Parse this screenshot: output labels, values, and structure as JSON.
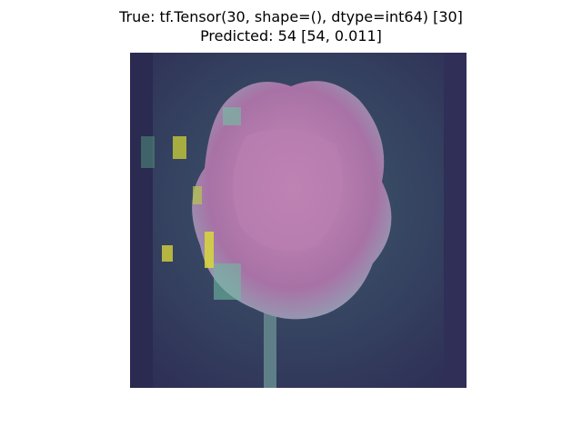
{
  "title": [
    "True: tf.Tensor(30, shape=(), dtype=int64) [30]",
    "Predicted: 54 [54, 0.011]"
  ]
}
